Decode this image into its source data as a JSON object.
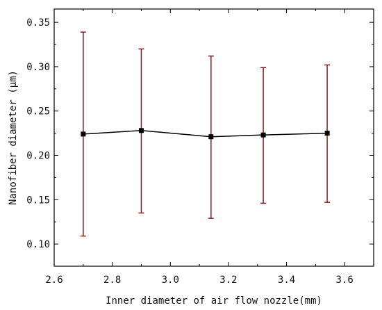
{
  "chart_data": {
    "type": "line",
    "title": "",
    "xlabel": "Inner diameter of air flow nozzle(mm)",
    "ylabel": "Nanofiber diameter (μm)",
    "xlim": [
      2.6,
      3.7
    ],
    "ylim": [
      0.075,
      0.365
    ],
    "xticks": [
      "2.6",
      "2.8",
      "3.0",
      "3.2",
      "3.4",
      "3.6"
    ],
    "yticks": [
      "0.10",
      "0.15",
      "0.20",
      "0.25",
      "0.30",
      "0.35"
    ],
    "grid": false,
    "series": [
      {
        "x": [
          2.7,
          2.9,
          3.14,
          3.32,
          3.54
        ],
        "y": [
          0.224,
          0.228,
          0.221,
          0.223,
          0.225
        ],
        "error_low": [
          0.109,
          0.135,
          0.129,
          0.146,
          0.147
        ],
        "error_high": [
          0.339,
          0.32,
          0.312,
          0.299,
          0.302
        ]
      }
    ],
    "colors": {
      "line": "#000000",
      "marker": "#000000",
      "error_bar": "#8b1a1a"
    }
  }
}
